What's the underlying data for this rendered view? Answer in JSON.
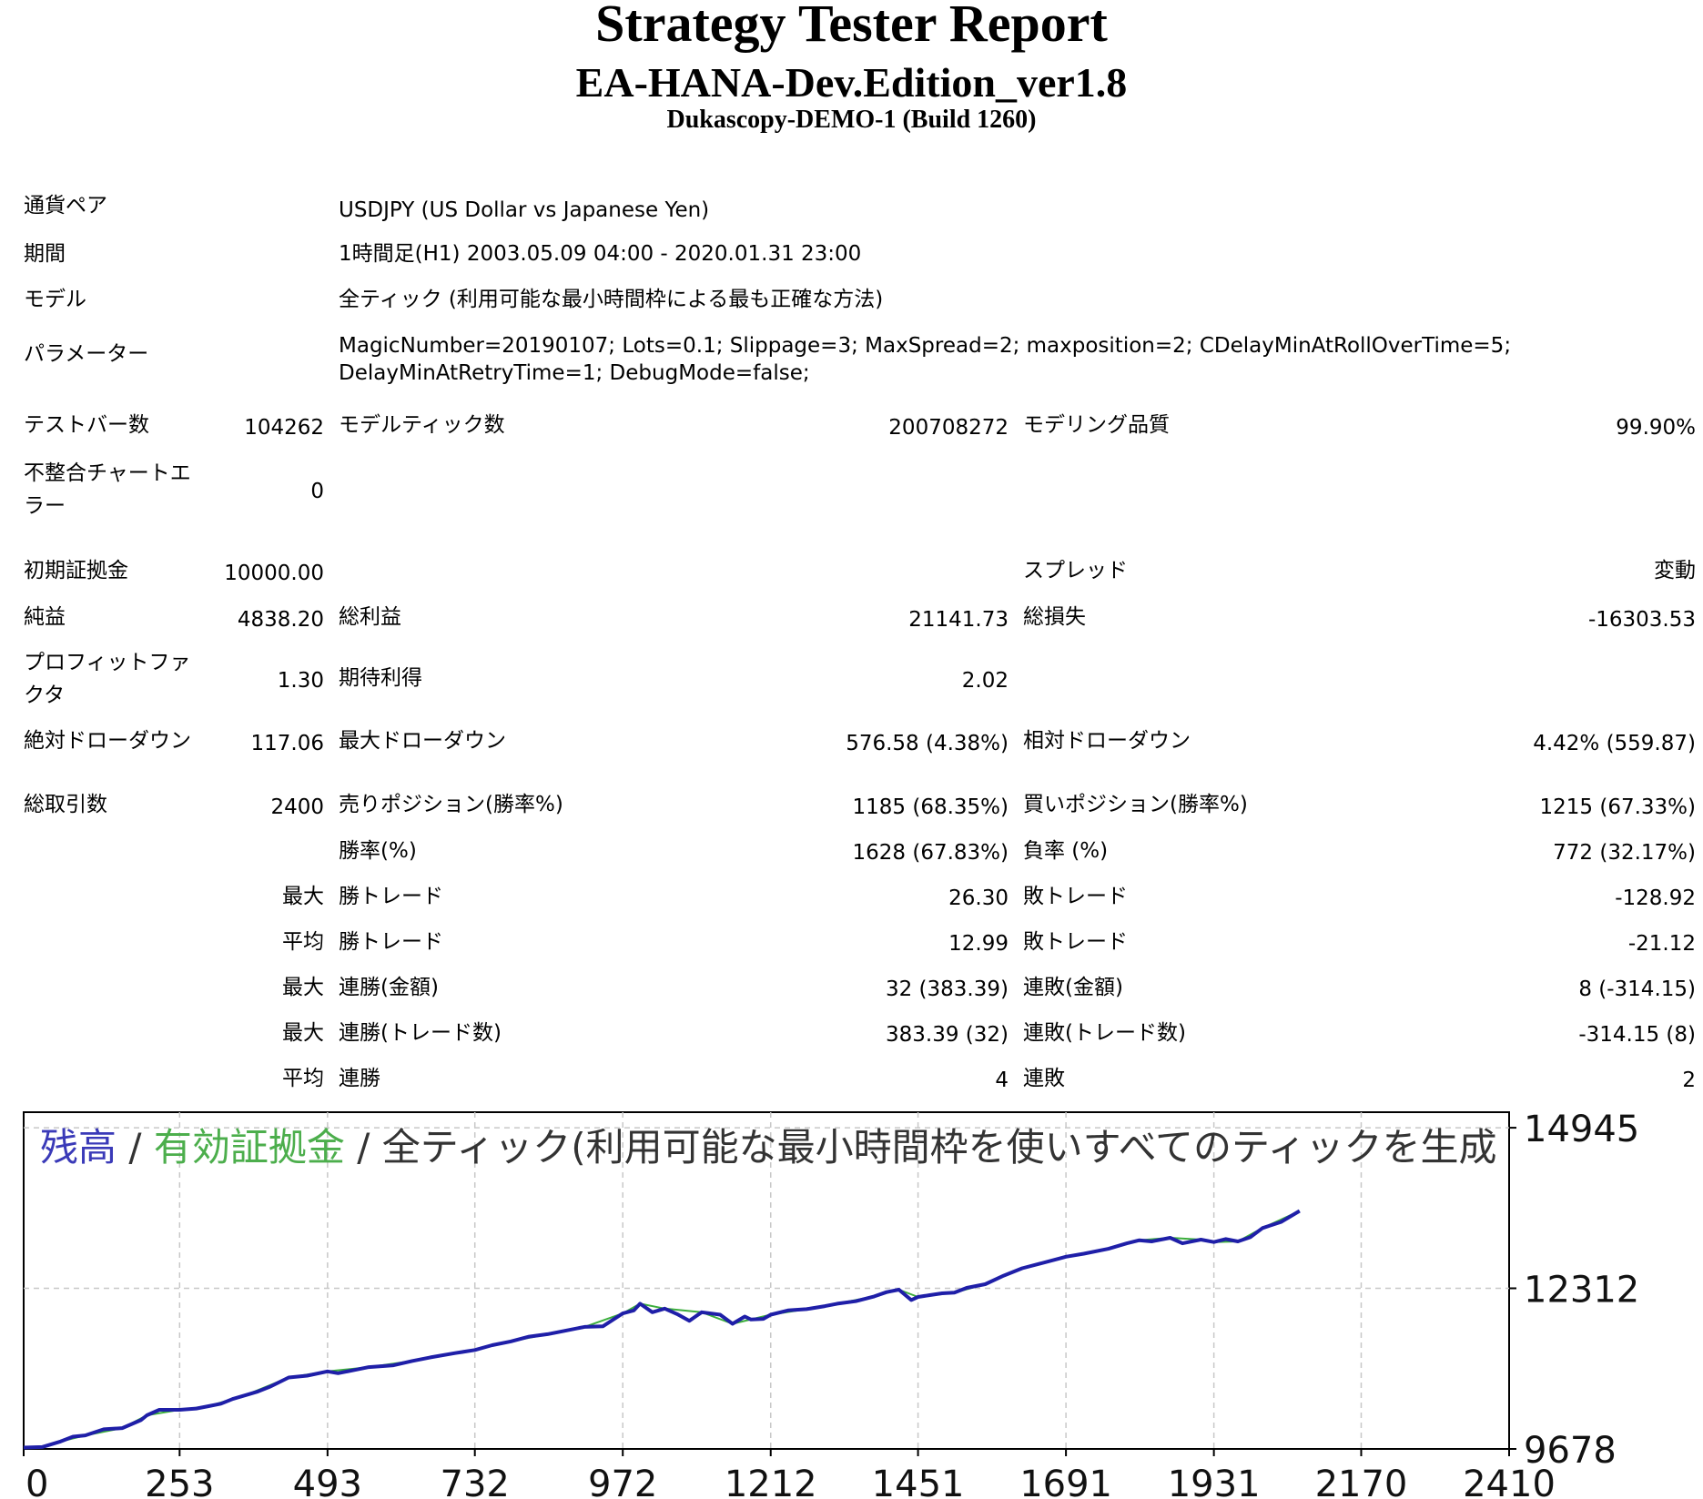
{
  "header": {
    "title": "Strategy Tester Report",
    "ea_name": "EA-HANA-Dev.Edition_ver1.8",
    "server": "Dukascopy-DEMO-1 (Build 1260)"
  },
  "info": {
    "symbol_label": "通貨ペア",
    "symbol_value": "USDJPY (US Dollar vs Japanese Yen)",
    "period_label": "期間",
    "period_value": "1時間足(H1) 2003.05.09 04:00 - 2020.01.31 23:00",
    "model_label": "モデル",
    "model_value": "全ティック (利用可能な最小時間枠による最も正確な方法)",
    "params_label": "パラメーター",
    "params_value": "MagicNumber=20190107; Lots=0.1; Slippage=3; MaxSpread=2; maxposition=2; CDelayMinAtRollOverTime=5; DelayMinAtRetryTime=1; DebugMode=false;"
  },
  "stats": {
    "bars_label": "テストバー数",
    "bars_value": "104262",
    "ticks_label": "モデルティック数",
    "ticks_value": "200708272",
    "quality_label": "モデリング品質",
    "quality_value": "99.90%",
    "mismatch_label": "不整合チャートエラー",
    "mismatch_value": "0",
    "deposit_label": "初期証拠金",
    "deposit_value": "10000.00",
    "spread_label": "スプレッド",
    "spread_value": "変動",
    "netprofit_label": "純益",
    "netprofit_value": "4838.20",
    "grossprofit_label": "総利益",
    "grossprofit_value": "21141.73",
    "grossloss_label": "総損失",
    "grossloss_value": "-16303.53",
    "pf_label": "プロフィットファクタ",
    "pf_value": "1.30",
    "expected_label": "期待利得",
    "expected_value": "2.02",
    "absdd_label": "絶対ドローダウン",
    "absdd_value": "117.06",
    "maxdd_label": "最大ドローダウン",
    "maxdd_value": "576.58 (4.38%)",
    "reldd_label": "相対ドローダウン",
    "reldd_value": "4.42% (559.87)",
    "trades_label": "総取引数",
    "trades_value": "2400",
    "short_label": "売りポジション(勝率%)",
    "short_value": "1185 (68.35%)",
    "long_label": "買いポジション(勝率%)",
    "long_value": "1215 (67.33%)",
    "win_label": "勝率(%)",
    "win_value": "1628 (67.83%)",
    "loss_label": "負率 (%)",
    "loss_value": "772 (32.17%)",
    "largest_label": "最大",
    "largest_win_label": "勝トレード",
    "largest_win_value": "26.30",
    "largest_loss_label": "敗トレード",
    "largest_loss_value": "-128.92",
    "average_label": "平均",
    "avg_win_label": "勝トレード",
    "avg_win_value": "12.99",
    "avg_loss_label": "敗トレード",
    "avg_loss_value": "-21.12",
    "maxcons1_label": "最大",
    "maxconswin_money_label": "連勝(金額)",
    "maxconswin_money_value": "32 (383.39)",
    "maxconsloss_money_label": "連敗(金額)",
    "maxconsloss_money_value": "8 (-314.15)",
    "maxcons2_label": "最大",
    "maxconswin_count_label": "連勝(トレード数)",
    "maxconswin_count_value": "383.39 (32)",
    "maxconsloss_count_label": "連敗(トレード数)",
    "maxconsloss_count_value": "-314.15 (8)",
    "avgcons_label": "平均",
    "avgconswin_label": "連勝",
    "avgconswin_value": "4",
    "avgconsloss_label": "連敗",
    "avgconsloss_value": "2"
  },
  "chart_data": {
    "type": "line",
    "title_parts": [
      "残高",
      " / ",
      "有効証拠金",
      " / ",
      "全ティック(利用可能な最小時間枠を使いすべてのティックを生成"
    ],
    "colors": {
      "balance": "#1f1fa8",
      "equity": "#3cae3c",
      "text": "#333333",
      "grid": "#c8c8c8",
      "title_balance": "#3a3ab8",
      "title_equity": "#4cae4c"
    },
    "x_ticks": [
      "0",
      "253",
      "493",
      "732",
      "972",
      "1212",
      "1451",
      "1691",
      "1931",
      "2170",
      "2410"
    ],
    "x_tick_values": [
      0,
      253,
      493,
      732,
      972,
      1212,
      1451,
      1691,
      1931,
      2170,
      2410
    ],
    "y_ticks": [
      "14945",
      "12312",
      "9678"
    ],
    "y_tick_values": [
      14945,
      12312,
      9678
    ],
    "xlim": [
      0,
      2410
    ],
    "ylim": [
      9678,
      15200
    ],
    "grid": true,
    "series": [
      {
        "name": "残高",
        "x": [
          0,
          30,
          60,
          80,
          100,
          130,
          160,
          190,
          200,
          220,
          253,
          280,
          300,
          320,
          340,
          360,
          380,
          400,
          430,
          460,
          493,
          510,
          540,
          560,
          600,
          630,
          660,
          700,
          732,
          760,
          790,
          820,
          850,
          880,
          910,
          940,
          972,
          990,
          1000,
          1020,
          1040,
          1060,
          1080,
          1100,
          1130,
          1150,
          1170,
          1180,
          1200,
          1212,
          1240,
          1270,
          1300,
          1320,
          1350,
          1380,
          1400,
          1420,
          1440,
          1451,
          1470,
          1490,
          1510,
          1530,
          1560,
          1590,
          1620,
          1650,
          1680,
          1691,
          1720,
          1760,
          1790,
          1810,
          1830,
          1860,
          1880,
          1910,
          1931,
          1950,
          1970,
          1990,
          2010,
          2040,
          2070
        ],
        "values": [
          9700,
          9710,
          9800,
          9880,
          9900,
          10000,
          10020,
          10150,
          10230,
          10320,
          10320,
          10340,
          10380,
          10420,
          10500,
          10560,
          10620,
          10700,
          10850,
          10880,
          10950,
          10920,
          10980,
          11020,
          11050,
          11120,
          11180,
          11250,
          11300,
          11380,
          11440,
          11520,
          11560,
          11620,
          11680,
          11690,
          11900,
          11950,
          12060,
          11920,
          11980,
          11890,
          11780,
          11920,
          11880,
          11730,
          11850,
          11800,
          11810,
          11880,
          11950,
          11970,
          12020,
          12060,
          12100,
          12180,
          12250,
          12290,
          12120,
          12170,
          12200,
          12230,
          12240,
          12320,
          12380,
          12520,
          12640,
          12720,
          12800,
          12830,
          12880,
          12960,
          13050,
          13100,
          13080,
          13140,
          13050,
          13110,
          13070,
          13120,
          13080,
          13150,
          13300,
          13400,
          13580
        ]
      },
      {
        "name": "有効証拠金",
        "x": [
          0,
          30,
          60,
          100,
          160,
          200,
          253,
          300,
          360,
          430,
          493,
          560,
          630,
          700,
          732,
          790,
          850,
          910,
          972,
          1000,
          1040,
          1100,
          1150,
          1212,
          1270,
          1320,
          1380,
          1420,
          1451,
          1510,
          1560,
          1620,
          1680,
          1691,
          1760,
          1810,
          1860,
          1910,
          1931,
          1970,
          2010,
          2070
        ],
        "values": [
          9700,
          9710,
          9800,
          9900,
          10020,
          10230,
          10320,
          10380,
          10560,
          10850,
          10950,
          11020,
          11120,
          11250,
          11300,
          11440,
          11560,
          11680,
          11900,
          12060,
          11980,
          11920,
          11730,
          11880,
          11970,
          12060,
          12180,
          12290,
          12170,
          12240,
          12380,
          12640,
          12800,
          12830,
          12960,
          13100,
          13140,
          13110,
          13070,
          13080,
          13300,
          13580
        ]
      }
    ]
  }
}
